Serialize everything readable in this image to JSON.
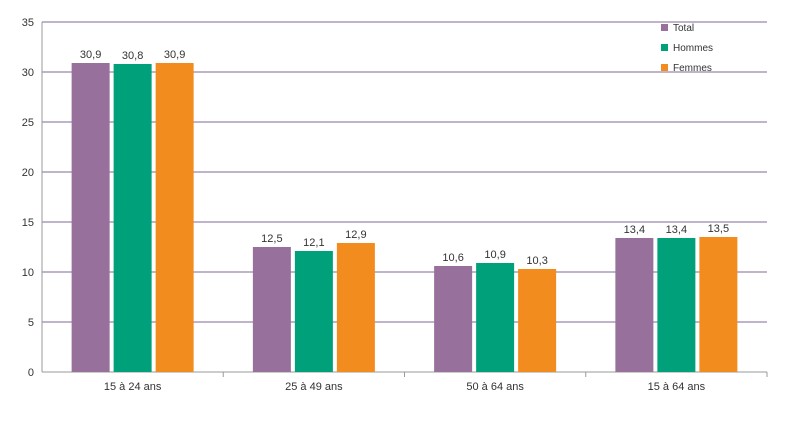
{
  "chart_data": {
    "type": "bar",
    "title": "",
    "xlabel": "",
    "ylabel": "",
    "ylim": [
      0,
      35
    ],
    "yticks": [
      0,
      5,
      10,
      15,
      20,
      25,
      30,
      35
    ],
    "yticks_labels": [
      "0",
      "5",
      "10",
      "15",
      "20",
      "25",
      "30",
      "35"
    ],
    "grid": true,
    "legend_position": "top-right",
    "categories": [
      "15 à 24 ans",
      "25 à 49 ans",
      "50 à 64 ans",
      "15 à 64 ans"
    ],
    "series": [
      {
        "name": "Total",
        "color": "#98709c",
        "values": [
          30.9,
          12.5,
          10.6,
          13.4
        ],
        "labels": [
          "30,9",
          "12,5",
          "10,6",
          "13,4"
        ]
      },
      {
        "name": "Hommes",
        "color": "#00a07a",
        "values": [
          30.8,
          12.1,
          10.9,
          13.4
        ],
        "labels": [
          "30,8",
          "12,1",
          "10,9",
          "13,4"
        ]
      },
      {
        "name": "Femmes",
        "color": "#f28c1e",
        "values": [
          30.9,
          12.9,
          10.3,
          13.5
        ],
        "labels": [
          "30,9",
          "12,9",
          "10,3",
          "13,5"
        ]
      }
    ],
    "gridline_color": "#7f6a94"
  }
}
